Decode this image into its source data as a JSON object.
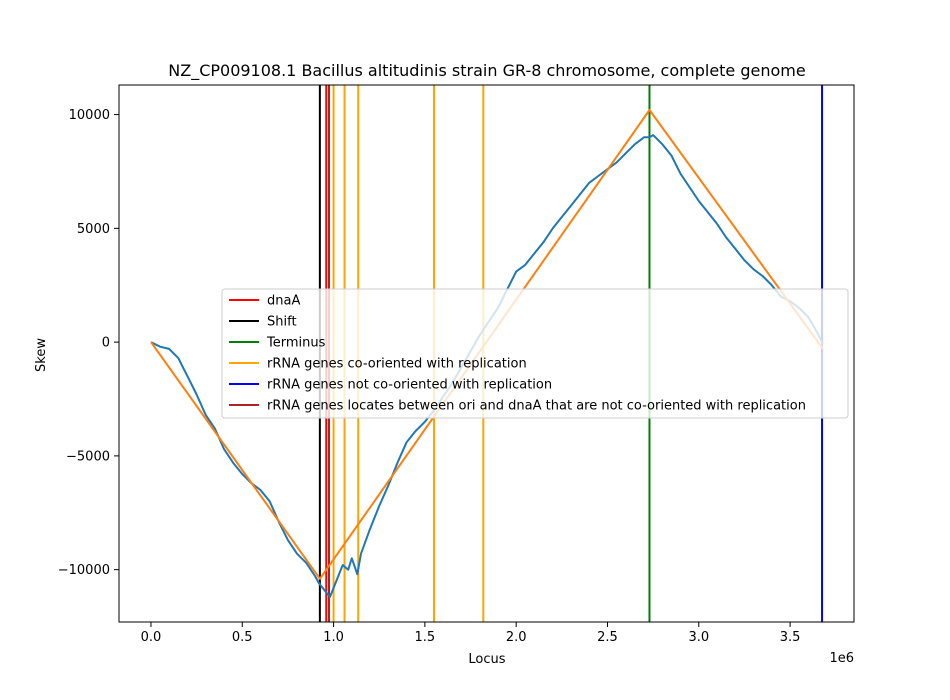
{
  "chart_data": {
    "type": "line",
    "title": "NZ_CP009108.1 Bacillus altitudinis strain GR-8 chromosome, complete genome",
    "xlabel": "Locus",
    "ylabel": "Skew",
    "x_offset_label": "1e6",
    "xlim": [
      -175000,
      3850000
    ],
    "ylim": [
      -12300,
      11300
    ],
    "x_ticks": [
      0,
      500000,
      1000000,
      1500000,
      2000000,
      2500000,
      3000000,
      3500000
    ],
    "x_tick_labels": [
      "0.0",
      "0.5",
      "1.0",
      "1.5",
      "2.0",
      "2.5",
      "3.0",
      "3.5"
    ],
    "y_ticks": [
      -10000,
      -5000,
      0,
      5000,
      10000
    ],
    "y_tick_labels": [
      "−10000",
      "−5000",
      "0",
      "5000",
      "10000"
    ],
    "grid": false,
    "legend_location": "center",
    "colors": {
      "skew": "#1f77b4",
      "fit": "#ff7f0e",
      "dnaA": "#ff0000",
      "shift": "#000000",
      "terminus": "#008000",
      "rrna_co": "#ffa500",
      "rrna_not_co": "#0000ff",
      "rrna_between": "#b22222"
    },
    "series": [
      {
        "key": "skew",
        "x": [
          0,
          50000,
          100000,
          150000,
          200000,
          250000,
          300000,
          350000,
          400000,
          450000,
          500000,
          550000,
          600000,
          650000,
          700000,
          750000,
          800000,
          850000,
          900000,
          920000,
          950000,
          980000,
          1000000,
          1030000,
          1050000,
          1080000,
          1100000,
          1130000,
          1150000,
          1200000,
          1250000,
          1300000,
          1350000,
          1400000,
          1450000,
          1500000,
          1550000,
          1600000,
          1650000,
          1700000,
          1750000,
          1800000,
          1850000,
          1900000,
          1950000,
          2000000,
          2050000,
          2100000,
          2150000,
          2200000,
          2250000,
          2300000,
          2350000,
          2400000,
          2450000,
          2500000,
          2550000,
          2600000,
          2650000,
          2700000,
          2730000,
          2750000,
          2800000,
          2850000,
          2900000,
          2950000,
          3000000,
          3050000,
          3100000,
          3150000,
          3200000,
          3250000,
          3300000,
          3350000,
          3400000,
          3450000,
          3500000,
          3550000,
          3600000,
          3650000,
          3680000
        ],
        "y": [
          0,
          -200,
          -300,
          -700,
          -1500,
          -2300,
          -3200,
          -3800,
          -4700,
          -5300,
          -5800,
          -6200,
          -6500,
          -7000,
          -7900,
          -8700,
          -9300,
          -9700,
          -10300,
          -10600,
          -10900,
          -11200,
          -10800,
          -10200,
          -9800,
          -10000,
          -9500,
          -10200,
          -9300,
          -8200,
          -7200,
          -6300,
          -5300,
          -4400,
          -3900,
          -3500,
          -3000,
          -2400,
          -1800,
          -1100,
          -400,
          300,
          900,
          1500,
          2300,
          3100,
          3400,
          3900,
          4400,
          5000,
          5500,
          6000,
          6500,
          7000,
          7300,
          7600,
          7900,
          8300,
          8700,
          9000,
          9000,
          9100,
          8700,
          8200,
          7400,
          6800,
          6200,
          5700,
          5200,
          4600,
          4100,
          3600,
          3200,
          2900,
          2500,
          2000,
          1800,
          1500,
          1100,
          400,
          -100
        ]
      },
      {
        "key": "fit",
        "x": [
          0,
          925000,
          2730000,
          3680000
        ],
        "y": [
          0,
          -10400,
          10200,
          -300
        ]
      }
    ],
    "vlines": [
      {
        "key": "shift",
        "x": 925000
      },
      {
        "key": "dnaA",
        "x": 960000
      },
      {
        "key": "rrna_between",
        "x": 975000
      },
      {
        "key": "rrna_co",
        "x": 1000000
      },
      {
        "key": "rrna_co",
        "x": 1060000
      },
      {
        "key": "rrna_co",
        "x": 1135000
      },
      {
        "key": "rrna_co",
        "x": 1550000
      },
      {
        "key": "rrna_co",
        "x": 1820000
      },
      {
        "key": "terminus",
        "x": 2730000
      },
      {
        "key": "rrna_not_co",
        "x": 3675000
      }
    ],
    "legend": [
      {
        "key": "dnaA",
        "label": "dnaA"
      },
      {
        "key": "shift",
        "label": "Shift"
      },
      {
        "key": "terminus",
        "label": "Terminus"
      },
      {
        "key": "rrna_co",
        "label": "rRNA genes co-oriented with replication"
      },
      {
        "key": "rrna_not_co",
        "label": "rRNA genes not co-oriented with replication"
      },
      {
        "key": "rrna_between",
        "label": "rRNA genes locates between ori and dnaA that are not co-oriented with replication"
      }
    ]
  }
}
